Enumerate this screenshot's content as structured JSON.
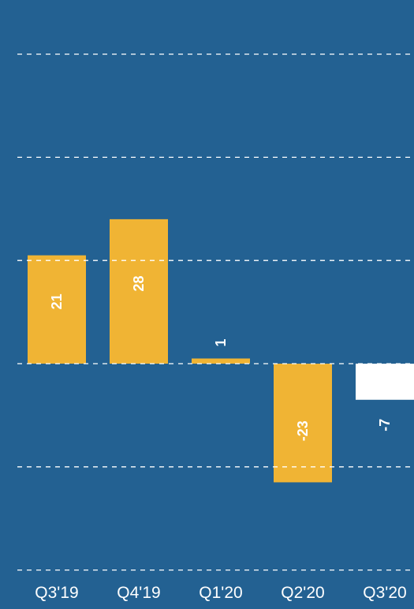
{
  "chart_data": {
    "type": "bar",
    "title": "",
    "xlabel": "",
    "ylabel": "",
    "categories": [
      "Q3'19",
      "Q4'19",
      "Q1'20",
      "Q2'20",
      "Q3'20"
    ],
    "values": [
      21,
      28,
      1,
      -23,
      -7
    ],
    "value_labels": [
      "21",
      "28",
      "1",
      "-23",
      "-7"
    ],
    "ylim": [
      -40,
      60
    ],
    "gridlines": [
      60,
      40,
      20,
      0,
      -20,
      -40
    ],
    "grid": true,
    "legend": "none",
    "colors": {
      "background": "#236192",
      "bar_default": "#F0B434",
      "bar_highlight": "#FFFFFF",
      "grid": "#FFFFFF",
      "label_on_bar": "#FFFFFF",
      "label_highlight": "#FFFFFF"
    },
    "highlight_index": 4
  }
}
